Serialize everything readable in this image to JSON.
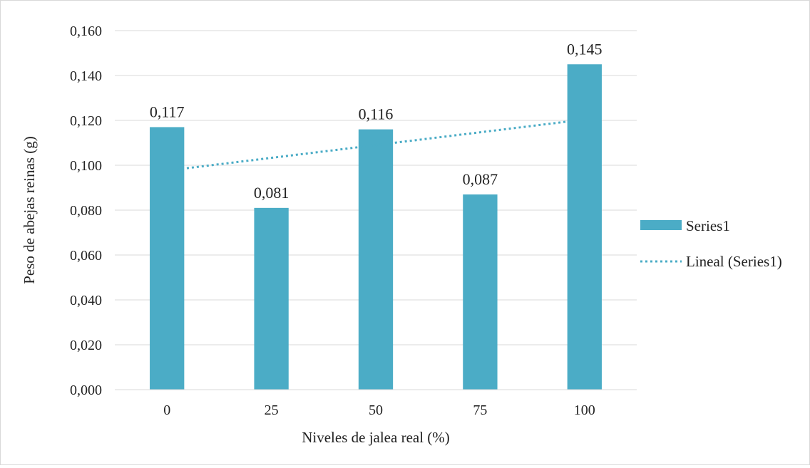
{
  "chart_data": {
    "type": "bar",
    "categories": [
      "0",
      "25",
      "50",
      "75",
      "100"
    ],
    "series": [
      {
        "name": "Series1",
        "values": [
          0.117,
          0.081,
          0.116,
          0.087,
          0.145
        ],
        "data_labels": [
          "0,117",
          "0,081",
          "0,116",
          "0,087",
          "0,145"
        ],
        "color": "#4bacc6"
      }
    ],
    "trendline": {
      "name": "Lineal (Series1)",
      "type": "linear",
      "start": 0.0976,
      "end": 0.1204,
      "color": "#4bacc6"
    },
    "xlabel": "Niveles de jalea real (%)",
    "ylabel": "Peso de abejas reinas (g)",
    "ylim": [
      0,
      0.16
    ],
    "yticks": [
      0,
      0.02,
      0.04,
      0.06,
      0.08,
      0.1,
      0.12,
      0.14,
      0.16
    ],
    "ytick_labels": [
      "0,000",
      "0,020",
      "0,040",
      "0,060",
      "0,080",
      "0,100",
      "0,120",
      "0,140",
      "0,160"
    ],
    "grid": true,
    "grid_color": "#d9d9d9",
    "legend_position": "right"
  }
}
